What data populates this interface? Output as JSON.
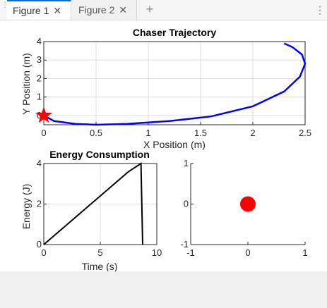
{
  "tabs": [
    {
      "label": "Figure 1",
      "close": "✕",
      "active": true
    },
    {
      "label": "Figure 2",
      "close": "✕",
      "active": false
    }
  ],
  "add_tab_icon": "+",
  "menu_icon": "⋮",
  "icons": {
    "grip": "grip-icon",
    "close": "close-icon",
    "add": "plus-icon",
    "menu": "kebab-menu-icon"
  },
  "colors": {
    "trajectory": "#0000ff",
    "marker": "#ff0000",
    "energy": "#000000",
    "dot": "#ff0000",
    "tab_accent": "#0a6ed1"
  },
  "chart_data": [
    {
      "type": "line",
      "title": "Chaser Trajectory",
      "xlabel": "X Position (m)",
      "ylabel": "Y Position (m)",
      "xlim": [
        0,
        2.5
      ],
      "ylim": [
        -0.5,
        4
      ],
      "xticks": [
        "0",
        "0.5",
        "1",
        "1.5",
        "2",
        "2.5"
      ],
      "yticks": [
        "0",
        "1",
        "2",
        "3",
        "4"
      ],
      "grid": true,
      "series": [
        {
          "x": [
            0,
            0.1,
            0.3,
            0.5,
            0.8,
            1.2,
            1.6,
            2.0,
            2.3,
            2.45,
            2.5,
            2.47,
            2.38,
            2.3
          ],
          "y": [
            0,
            -0.3,
            -0.45,
            -0.5,
            -0.45,
            -0.3,
            -0.05,
            0.5,
            1.3,
            2.1,
            2.8,
            3.3,
            3.7,
            3.9
          ]
        }
      ],
      "marker": {
        "x": 0,
        "y": 0,
        "shape": "star"
      }
    },
    {
      "type": "line",
      "title": "Energy Consumption",
      "xlabel": "Time (s)",
      "ylabel": "Energy (J)",
      "xlim": [
        0,
        10
      ],
      "ylim": [
        0,
        4
      ],
      "xticks": [
        "0",
        "5",
        "10"
      ],
      "yticks": [
        "0",
        "2",
        "4"
      ],
      "grid": true,
      "series": [
        {
          "x": [
            0,
            7.5,
            8.6,
            8.75
          ],
          "y": [
            0,
            3.6,
            4.0,
            0
          ]
        }
      ]
    },
    {
      "type": "scatter",
      "xlim": [
        -1,
        1
      ],
      "ylim": [
        -1,
        1
      ],
      "xticks": [
        "-1",
        "0",
        "1"
      ],
      "yticks": [
        "-1",
        "0",
        "1"
      ],
      "grid": false,
      "points": [
        {
          "x": 0,
          "y": 0
        }
      ]
    }
  ]
}
